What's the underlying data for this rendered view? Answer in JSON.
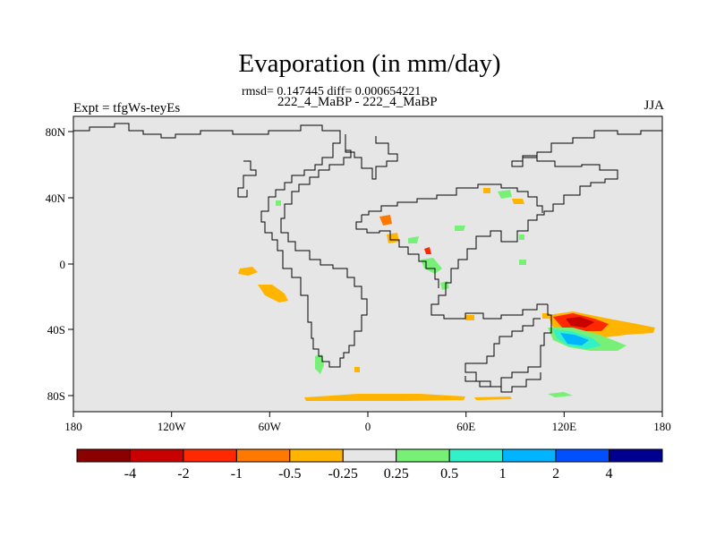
{
  "title": "Evaporation (in mm/day)",
  "stats": "rmsd= 0.147445 diff= 0.000654221",
  "subtitle": "222_4_MaBP - 222_4_MaBP",
  "expt": "Expt = tfgWs-teyEs",
  "season": "JJA",
  "lon_labels": [
    "180",
    "120W",
    "60W",
    "0",
    "60E",
    "120E",
    "180"
  ],
  "lat_labels": [
    "80N",
    "40N",
    "0",
    "40S",
    "80S"
  ],
  "colors": {
    "land_fill": "#e6e6e6",
    "coast": "#000000",
    "bins": [
      "#8b0000",
      "#c80000",
      "#ff2800",
      "#ff7800",
      "#ffb400",
      "#e6e6e6",
      "#78f078",
      "#32f0c8",
      "#00b4ff",
      "#0050ff",
      "#000090"
    ]
  },
  "colorbar_labels": [
    "-4",
    "-2",
    "-1",
    "-0.5",
    "-0.25",
    "0.25",
    "0.5",
    "1",
    "2",
    "4"
  ]
}
